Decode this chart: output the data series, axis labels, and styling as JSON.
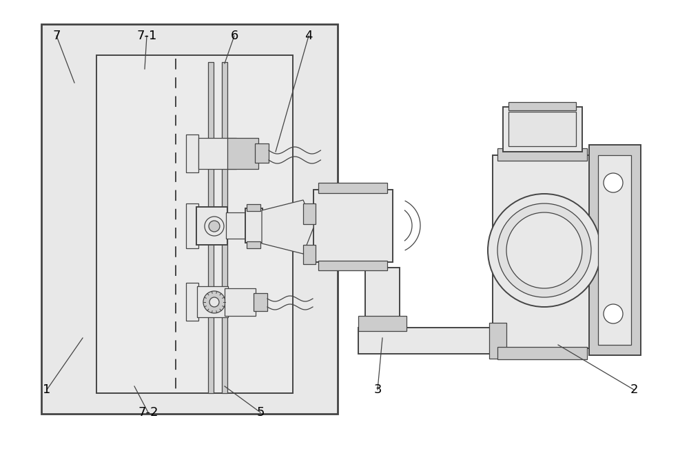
{
  "bg_color": "#ffffff",
  "line_color": "#666666",
  "dark_line": "#444444",
  "fill_light": "#e8e8e8",
  "fill_mid": "#cccccc",
  "fill_dark": "#aaaaaa",
  "white": "#ffffff",
  "lw_main": 1.4,
  "lw_thin": 0.9,
  "lw_thick": 2.0
}
